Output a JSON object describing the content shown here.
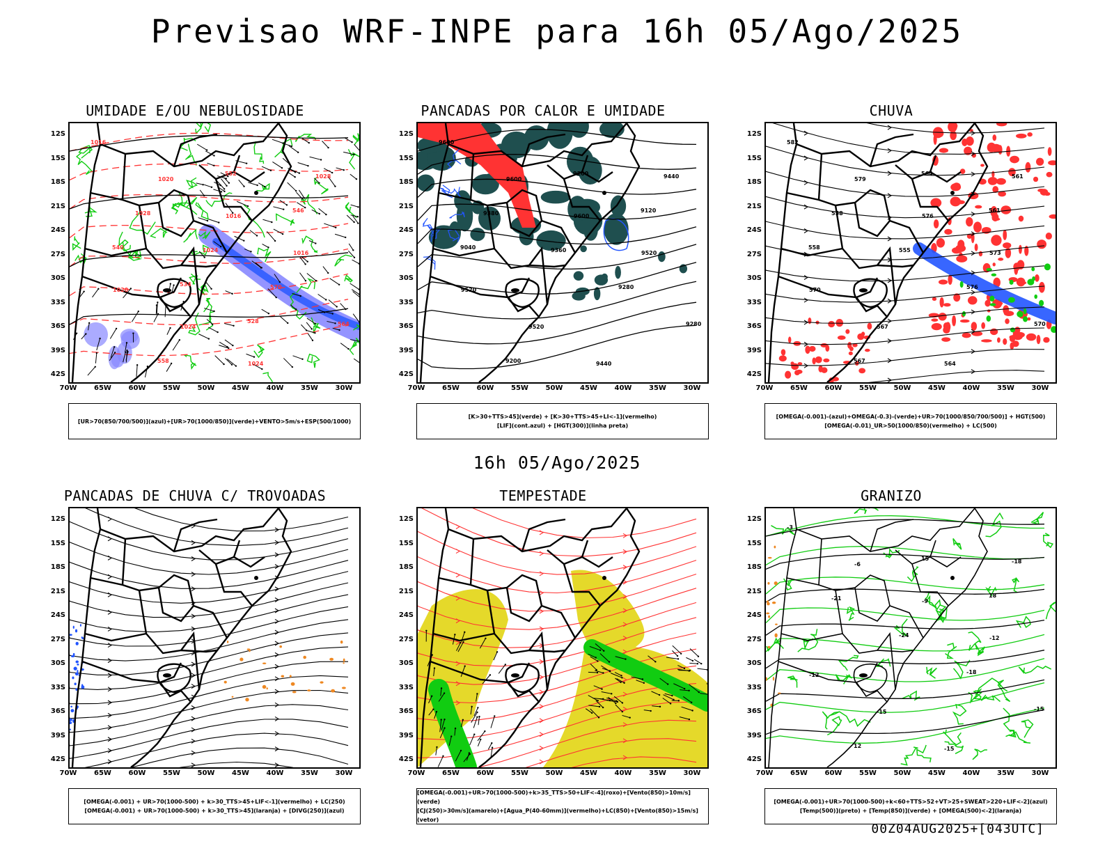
{
  "header": {
    "title": "Previsao WRF-INPE  para 16h 05/Ago/2025"
  },
  "middle": {
    "valid_time": "16h 05/Ago/2025"
  },
  "footer": {
    "run_stamp": "00Z04AUG2025+[043UTC]"
  },
  "axes": {
    "lat_labels": [
      "12S",
      "15S",
      "18S",
      "21S",
      "24S",
      "27S",
      "30S",
      "33S",
      "36S",
      "39S",
      "42S"
    ],
    "lon_labels": [
      "70W",
      "65W",
      "60W",
      "55W",
      "50W",
      "45W",
      "40W",
      "35W",
      "30W"
    ]
  },
  "panels": [
    {
      "id": "umidade",
      "title": "UMIDADE E/OU NEBULOSIDADE",
      "legend": [
        "[UR>70(850/700/500)](azul)+[UR>70(1000/850)](verde)+VENTO>5m/s+ESP(500/1000)"
      ],
      "contour_labels": [
        "1016",
        "1020",
        "1016",
        "1016",
        "1020",
        "1024",
        "1024",
        "1028",
        "1028",
        "1024",
        "570",
        "564",
        "558",
        "552",
        "546",
        "540",
        "534",
        "528"
      ]
    },
    {
      "id": "pancadas_calor",
      "title": "PANCADAS POR CALOR E UMIDADE",
      "legend": [
        "[K>30+TTS>45](verde) + [K>30+TTS>45+LI<-1](vermelho)",
        "[LIF](cont.azul) + [HGT(300)](linha preta)"
      ],
      "contour_labels": [
        "9600",
        "9600",
        "9600",
        "9520",
        "9520",
        "9520",
        "9440",
        "9440",
        "9380",
        "9360",
        "9280",
        "9280",
        "9200",
        "9200",
        "9120",
        "9040"
      ]
    },
    {
      "id": "chuva",
      "title": "CHUVA",
      "legend": [
        "[OMEGA(-0.001)-(azul)+OMEGA(-0.3)-(verde)+UR>70(1000/850/700/500)] + HGT(500)",
        "[OMEGA(-0.01)_UR>50(1000/850)(vermelho) + LC(500)"
      ],
      "contour_labels": [
        "582",
        "579",
        "576",
        "573",
        "570",
        "567",
        "564",
        "561",
        "558",
        "555",
        "576",
        "570",
        "567",
        "564",
        "561",
        "558"
      ]
    },
    {
      "id": "trovoadas",
      "title": "PANCADAS DE CHUVA C/ TROVOADAS",
      "legend": [
        "[OMEGA(-0.001) + UR>70(1000-500) + k>30_TTS>45+LIF<-1](vermelho) + LC(250)",
        "[OMEGA(-0.001) + UR>70(1000-500) + k>30_TTS>45](laranja) + [DIVG(250)](azul)"
      ],
      "contour_labels": []
    },
    {
      "id": "tempestade",
      "title": "TEMPESTADE",
      "legend": [
        "[OMEGA(-0.001)+UR>70(1000-500)+k>35_TTS>50+LIF<-4](roxo)+[Vento(850)>10m/s](verde)",
        "[CJ(250)>30m/s](amarelo)+[Agua_P(40-60mm)](vermelho)+LC(850)+[Vento(850)>15m/s](vetor)"
      ],
      "contour_labels": []
    },
    {
      "id": "granizo",
      "title": "GRANIZO",
      "legend": [
        "[OMEGA(-0.001)+UR>70(1000-500)+k<60+TTS>52+VT>25+SWEAT>220+LIF<-2](azul)",
        "[Temp(500)](preto) + [Temp(850)](verde) + [OMEGA(500)<-2](laranja)"
      ],
      "contour_labels": [
        "-3",
        "-6",
        "-9",
        "-12",
        "-12",
        "-15",
        "-15",
        "-18",
        "-21",
        "-24",
        "-18",
        "-15",
        "12",
        "15",
        "18"
      ]
    }
  ],
  "colors": {
    "red": "#ff3333",
    "green": "#11cc11",
    "blue": "#2255ff",
    "lightblue": "#8888ff",
    "teal": "#1f4f4f",
    "yellow": "#e5d92a",
    "orange": "#ee8822",
    "black": "#000000"
  }
}
